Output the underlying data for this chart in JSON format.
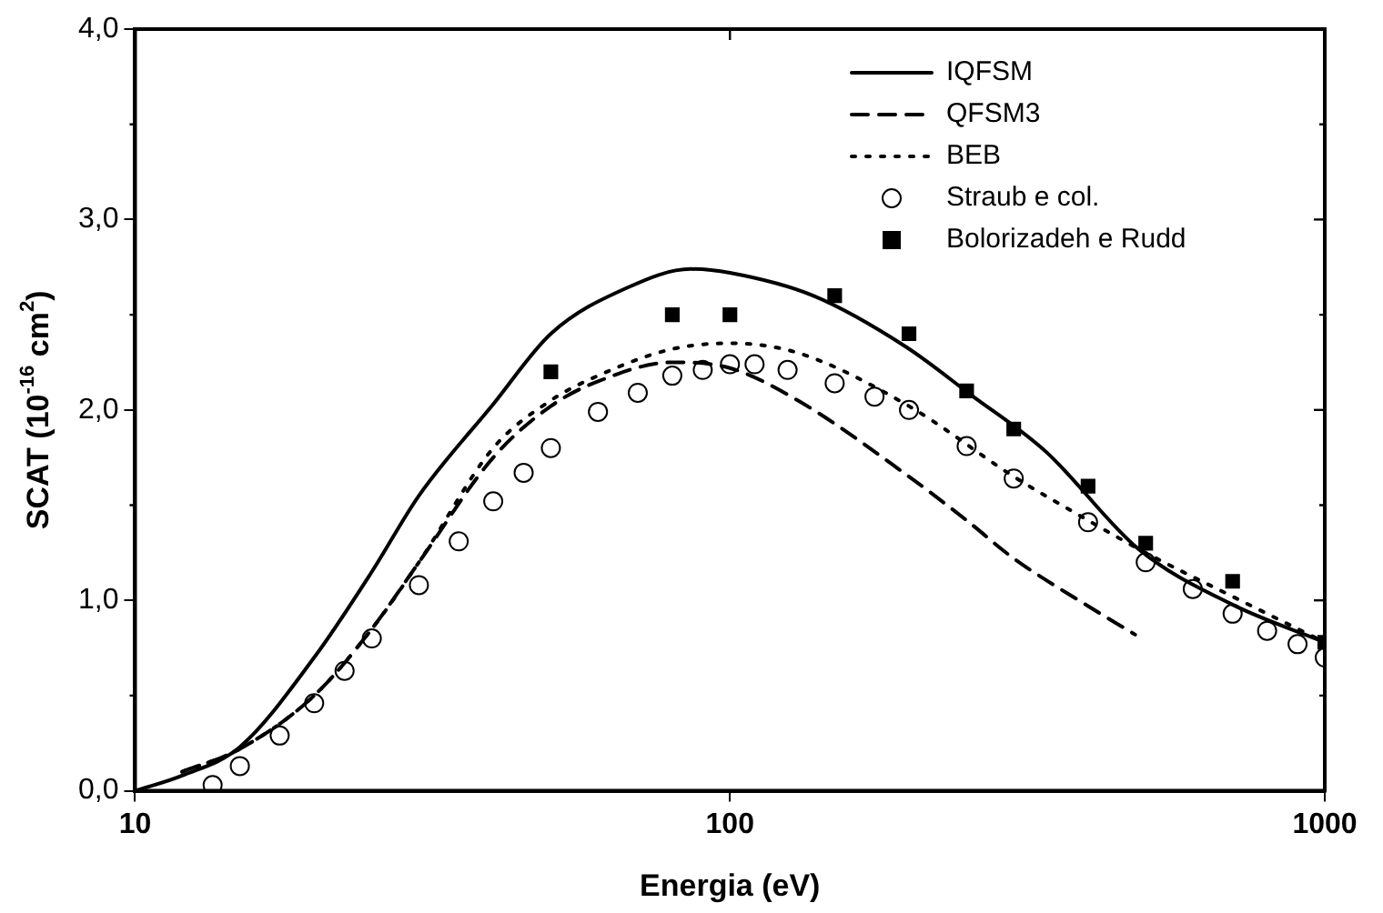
{
  "chart_data": {
    "type": "line",
    "xlabel": "Energia (eV)",
    "ylabel": "SCAT (10$^{-16}$ cm$^{2}$)",
    "log": "x",
    "xlim": [
      10,
      1000
    ],
    "xticks": [
      10,
      100,
      1000
    ],
    "ylim": [
      0,
      4
    ],
    "yticks": [
      {
        "value": 0,
        "label": "0,0"
      },
      {
        "value": 1,
        "label": "1,0"
      },
      {
        "value": 2,
        "label": "2,0"
      },
      {
        "value": 3,
        "label": "3,0"
      },
      {
        "value": 4,
        "label": "4,0"
      }
    ],
    "grid": false,
    "legend": "top right",
    "series": [
      {
        "name": "IQFSM",
        "color": "#000000",
        "line_style": "solid",
        "marker": "none",
        "x": [
          10,
          12,
          15,
          20,
          25,
          30,
          40,
          50,
          67,
          86,
          100,
          138,
          198,
          254,
          340,
          486,
          697,
          1000
        ],
        "values": [
          0,
          0.08,
          0.23,
          0.7,
          1.15,
          1.55,
          2.03,
          2.4,
          2.64,
          2.74,
          2.72,
          2.6,
          2.33,
          2.08,
          1.78,
          1.27,
          0.98,
          0.78
        ]
      },
      {
        "name": "QFSM3",
        "color": "#000000",
        "line_style": "dashed",
        "marker": "none",
        "x": [
          12,
          15,
          20,
          25,
          30,
          40,
          50,
          60,
          80,
          100,
          130,
          200,
          250,
          300,
          400,
          480
        ],
        "values": [
          0.1,
          0.22,
          0.5,
          0.85,
          1.2,
          1.75,
          2.02,
          2.15,
          2.25,
          2.22,
          2.05,
          1.65,
          1.42,
          1.22,
          0.97,
          0.82
        ]
      },
      {
        "name": "BEB",
        "color": "#000000",
        "line_style": "dotted",
        "marker": "none",
        "x": [
          12,
          15,
          20,
          25,
          30,
          40,
          50,
          60,
          80,
          100,
          130,
          200,
          300,
          400,
          500,
          700,
          1000
        ],
        "values": [
          0.1,
          0.22,
          0.5,
          0.85,
          1.2,
          1.8,
          2.05,
          2.18,
          2.32,
          2.35,
          2.3,
          2.02,
          1.65,
          1.42,
          1.25,
          1.02,
          0.78
        ]
      },
      {
        "name": "Straub e col.",
        "type": "scatter",
        "color": "#000000",
        "marker": "circle",
        "x": [
          13.5,
          15,
          17.5,
          20,
          22.5,
          25,
          30,
          35,
          40,
          45,
          50,
          60,
          70,
          80,
          90,
          100,
          110,
          125,
          150,
          175,
          200,
          250,
          300,
          400,
          500,
          600,
          700,
          800,
          900,
          1000
        ],
        "values": [
          0.03,
          0.13,
          0.29,
          0.46,
          0.63,
          0.8,
          1.08,
          1.31,
          1.52,
          1.67,
          1.8,
          1.99,
          2.09,
          2.18,
          2.21,
          2.24,
          2.24,
          2.21,
          2.14,
          2.07,
          2.0,
          1.81,
          1.64,
          1.41,
          1.2,
          1.06,
          0.93,
          0.84,
          0.77,
          0.7
        ]
      },
      {
        "name": "Bolorizadeh e Rudd",
        "type": "scatter",
        "color": "#000000",
        "marker": "square",
        "x": [
          50,
          80,
          100,
          150,
          200,
          250,
          300,
          400,
          500,
          700,
          1000
        ],
        "values": [
          2.2,
          2.5,
          2.5,
          2.6,
          2.4,
          2.1,
          1.9,
          1.6,
          1.3,
          1.1,
          0.78
        ]
      }
    ]
  }
}
